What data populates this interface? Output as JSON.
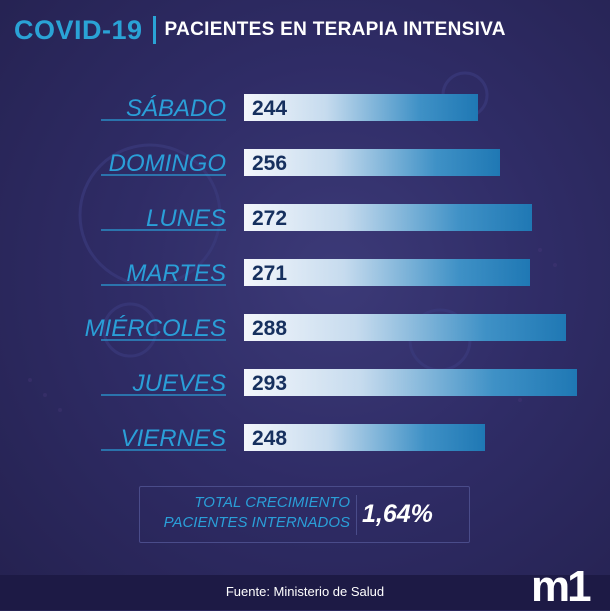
{
  "header": {
    "brand": "COVID-19",
    "title": "PACIENTES EN TERAPIA INTENSIVA"
  },
  "chart_data": {
    "type": "bar",
    "orientation": "horizontal",
    "title": "PACIENTES EN TERAPIA INTENSIVA",
    "categories": [
      "SÁBADO",
      "DOMINGO",
      "LUNES",
      "MARTES",
      "MIÉRCOLES",
      "JUEVES",
      "VIERNES"
    ],
    "values": [
      244,
      256,
      272,
      271,
      288,
      293,
      248
    ],
    "value_labels": [
      "244",
      "256",
      "272",
      "271",
      "288",
      "293",
      "248"
    ],
    "xlabel": "",
    "ylabel": ""
  },
  "summary": {
    "label_line1": "TOTAL CRECIMIENTO",
    "label_line2": "PACIENTES INTERNADOS",
    "value": "1,64%"
  },
  "footer": {
    "source": "Fuente: Ministerio de Salud",
    "logo": "m1"
  },
  "colors": {
    "accent_blue": "#2aa3d6",
    "label_blue": "#2a9fd8",
    "value_text": "#16305e",
    "background": "#2f2c66"
  }
}
